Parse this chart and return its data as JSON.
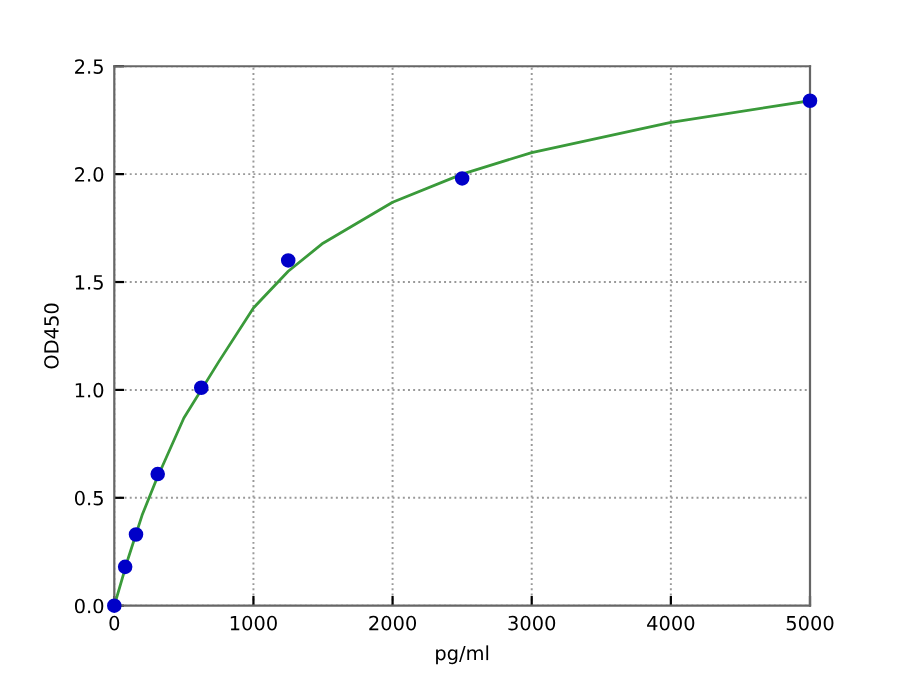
{
  "chart_data": {
    "type": "scatter",
    "xlabel": "pg/ml",
    "ylabel": "OD450",
    "xlim": [
      0,
      5000
    ],
    "ylim": [
      0,
      2.5
    ],
    "xticks": [
      0,
      1000,
      2000,
      3000,
      4000,
      5000
    ],
    "yticks": [
      {
        "value": 0,
        "label": "0.0"
      },
      {
        "value": 0.5,
        "label": "0.5"
      },
      {
        "value": 1,
        "label": "1.0"
      },
      {
        "value": 1.5,
        "label": "1.5"
      },
      {
        "value": 2,
        "label": "2.0"
      },
      {
        "value": 2.5,
        "label": "2.5"
      }
    ],
    "grid": true,
    "legend": false,
    "series": [
      {
        "color": "#0000c8",
        "marker": "circle",
        "x": [
          0,
          78,
          156,
          312,
          625,
          1250,
          2500,
          5000
        ],
        "values": [
          0,
          0.18,
          0.33,
          0.61,
          1.01,
          1.6,
          1.98,
          2.34
        ]
      },
      {
        "type": "line",
        "color": "#3a9a3a",
        "marker": "none",
        "line_style": "solid",
        "x": [
          0,
          100,
          200,
          300,
          500,
          750,
          1000,
          1250,
          1500,
          2000,
          2500,
          3000,
          4000,
          5000
        ],
        "values": [
          0,
          0.22,
          0.42,
          0.58,
          0.87,
          1.13,
          1.38,
          1.55,
          1.68,
          1.87,
          2.0,
          2.1,
          2.24,
          2.34
        ]
      }
    ]
  }
}
